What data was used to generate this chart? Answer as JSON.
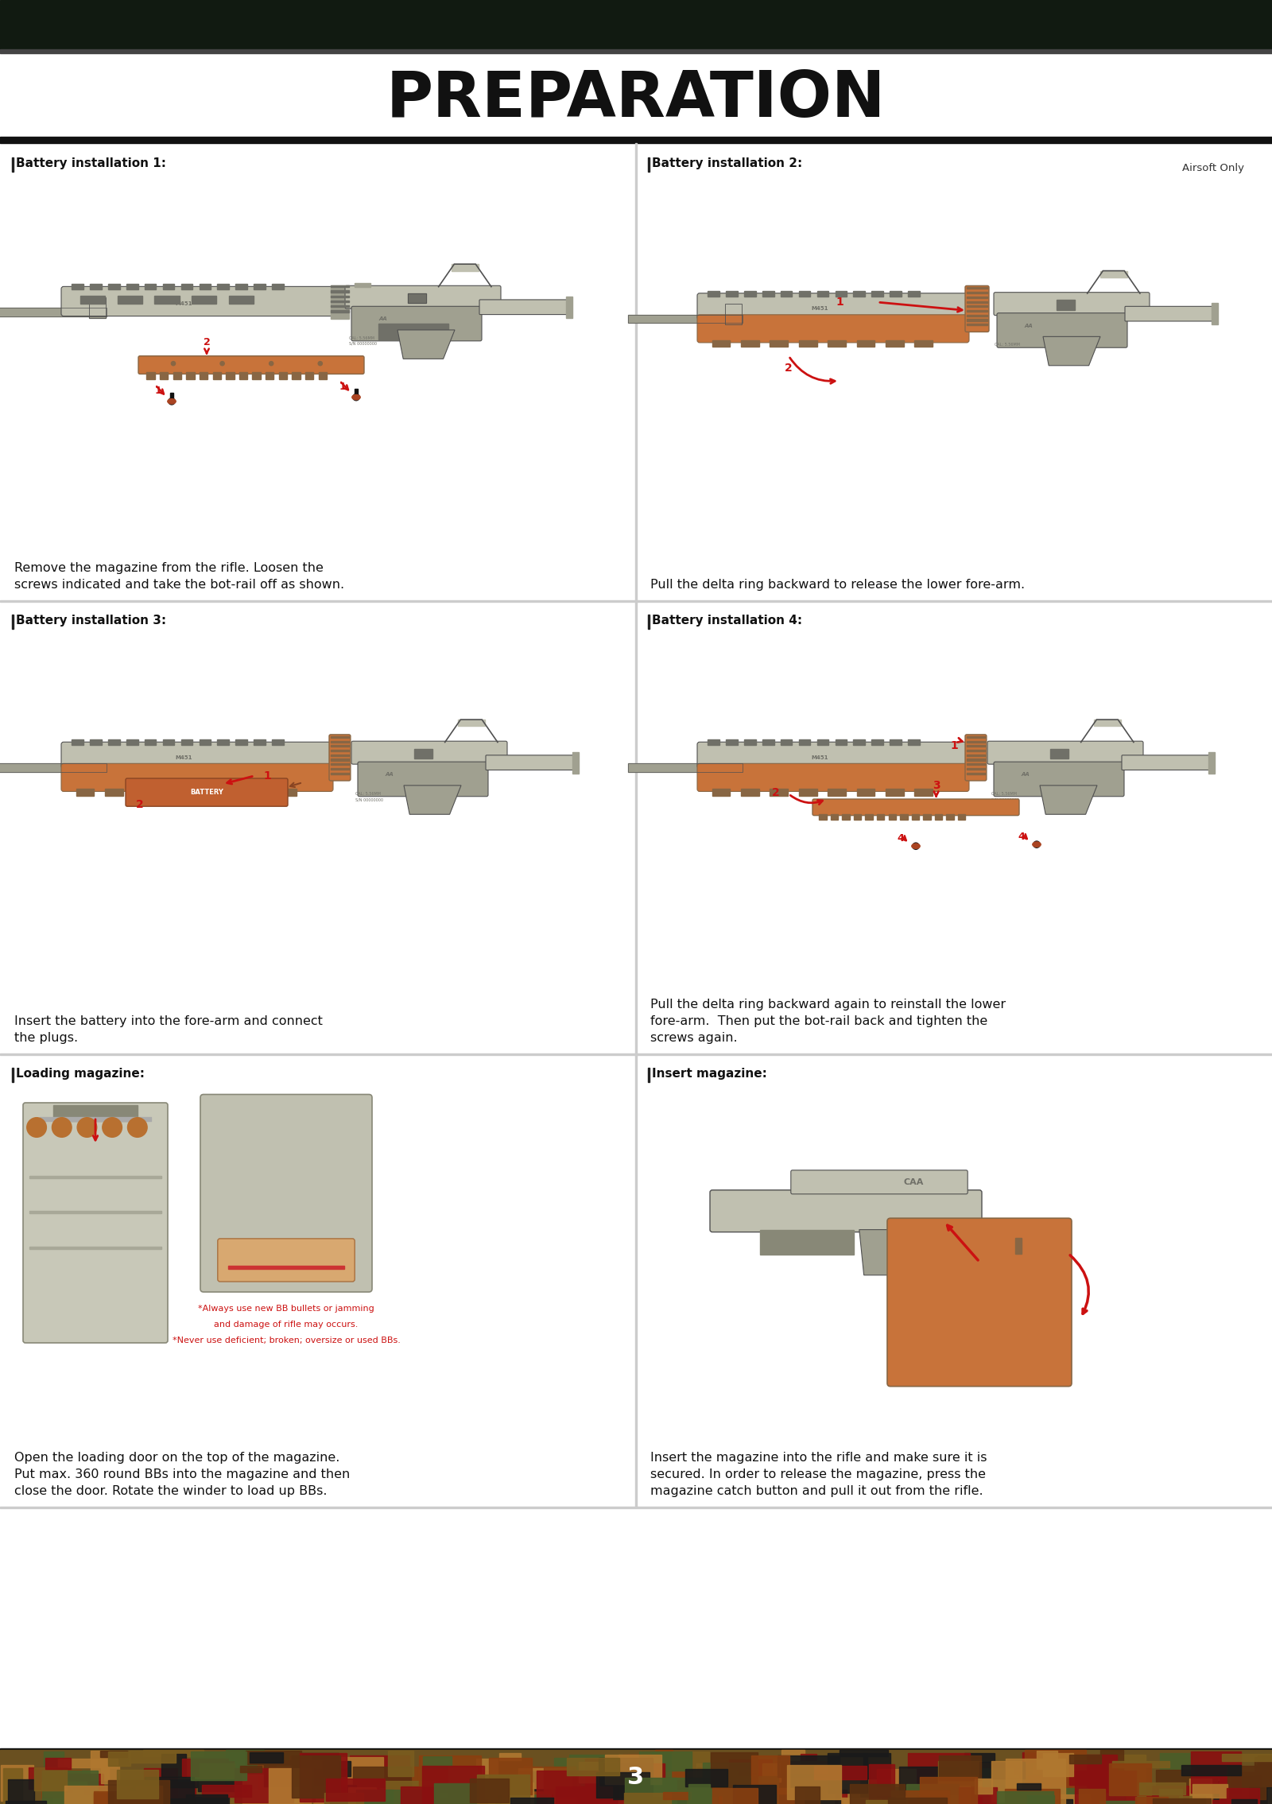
{
  "title": "PREPARATION",
  "page_number": "3",
  "airsoft_only": "Airsoft Only",
  "bg_color": "#ffffff",
  "top_bar_color": "#111a11",
  "section_labels": [
    "Battery installation 1:",
    "Battery installation 2:",
    "Battery installation 3:",
    "Battery installation 4:",
    "Loading magazine:",
    "Insert magazine:"
  ],
  "body_texts": [
    "Remove the magazine from the rifle. Loosen the\nscrews indicated and take the bot-rail off as shown.",
    "Pull the delta ring backward to release the lower fore-arm.",
    "Insert the battery into the fore-arm and connect\nthe plugs.",
    "Pull the delta ring backward again to reinstall the lower\nfore-arm.  Then put the bot-rail back and tighten the\nscrews again.",
    "Open the loading door on the top of the magazine.\nPut max. 360 round BBs into the magazine and then\nclose the door. Rotate the winder to load up BBs.",
    "Insert the magazine into the rifle and make sure it is\nsecured. In order to release the magazine, press the\nmagazine catch button and pull it out from the rifle."
  ],
  "mag_note1": "*Always use new BB bullets or jamming",
  "mag_note2": "and damage of rifle may occurs.",
  "mag_note3": "*Never use deficient; broken; oversize or used BBs.",
  "red": "#cc1111",
  "gun_light": "#c8c8b8",
  "gun_mid": "#a8a898",
  "gun_dark": "#787868",
  "gun_outline": "#555555",
  "fore_arm_orange": "#c8733a",
  "fore_arm_light": "#d8935a",
  "rail_dark": "#886644",
  "camo_colors": [
    "#7a5c1e",
    "#4a5e2a",
    "#8a1010",
    "#1a1a1a",
    "#b07830",
    "#5a3010",
    "#8a4010"
  ],
  "label_fs": 11,
  "body_fs": 11.5,
  "title_fs": 58
}
